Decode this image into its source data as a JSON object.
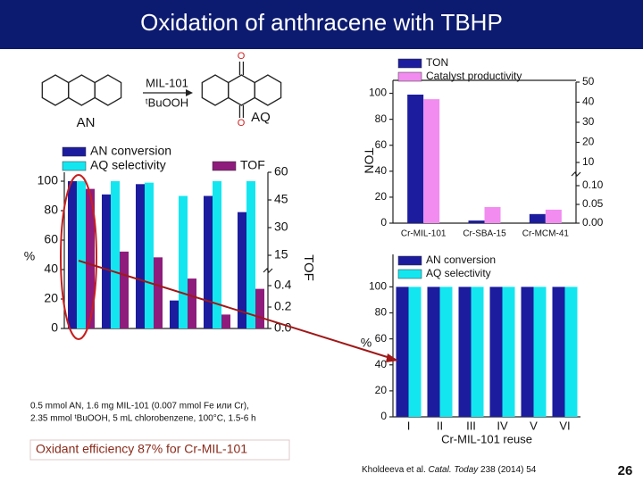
{
  "title": "Oxidation of anthracene with TBHP",
  "scheme": {
    "catalyst": "MIL-101",
    "oxidant": "ᵗBuOOH",
    "reactant": "AN",
    "product": "AQ",
    "atoms": [
      "O",
      "O"
    ]
  },
  "conditions": [
    "0.5 mmol AN, 1.6 mg MIL-101 (0.007 mmol Fe или Cr),",
    "2.35 mmol ᵗBuOOH, 5 mL chlorobenzene, 100°C, 1.5-6 h"
  ],
  "note": "Oxidant efficiency 87% for Cr-MIL-101",
  "reference": [
    "Kholdeeva et al. ",
    "Catal. Today",
    " 238 (2014) 54"
  ],
  "page_number": "26",
  "chart_data": [
    {
      "type": "bar",
      "categories": [
        null,
        null,
        null,
        null,
        null,
        null
      ],
      "series": [
        {
          "name": "AN conversion",
          "color": "#1c1c9e",
          "values": [
            100,
            91,
            98,
            19,
            90,
            79
          ]
        },
        {
          "name": "AQ selectivity",
          "color": "#14e6f0",
          "values": [
            100,
            100,
            99,
            90,
            100,
            100
          ]
        },
        {
          "name": "TOF",
          "color": "#8e1c7c",
          "values": [
            51,
            17,
            14,
            3.8,
            0.13,
            0.37
          ],
          "axis": "y2"
        }
      ],
      "ylabel": "%",
      "y2label": "TOF",
      "ylim": [
        0,
        100
      ],
      "yticks": [
        0,
        20,
        40,
        60,
        80,
        100
      ],
      "y2lim": [
        0,
        60
      ],
      "y2_break": [
        0.4,
        15
      ],
      "y2ticks": [
        {
          "value": 0,
          "label": "0.0"
        },
        0.2,
        0.4,
        15,
        30,
        45,
        60
      ]
    },
    {
      "type": "bar",
      "categories": [
        "Cr-MIL-101",
        "Cr-SBA-15",
        "Cr-MCM-41"
      ],
      "series": [
        {
          "name": "TON",
          "color": "#1c1c9e",
          "values": [
            99,
            2,
            7
          ]
        },
        {
          "name": "Catalyst productivity",
          "color": "#f28cf0",
          "values": [
            41.5,
            0.043,
            0.036
          ],
          "axis": "y2"
        }
      ],
      "ylabel": "TON",
      "ylim": [
        0,
        110
      ],
      "yticks": [
        0,
        20,
        40,
        60,
        80,
        100
      ],
      "y2lim": [
        0,
        50
      ],
      "y2_break": [
        0.1,
        10
      ],
      "y2ticks": [
        {
          "value": 0,
          "label": "0.00"
        },
        0.05,
        {
          "value": 0.1,
          "label": "0.10"
        },
        10,
        20,
        30,
        40,
        50
      ]
    },
    {
      "type": "bar",
      "categories": [
        "I",
        "II",
        "III",
        "IV",
        "V",
        "VI"
      ],
      "series": [
        {
          "name": "AN conversion",
          "color": "#1c1c9e",
          "values": [
            100,
            100,
            100,
            100,
            100,
            100
          ]
        },
        {
          "name": "AQ selectivity",
          "color": "#14e6f0",
          "values": [
            100,
            100,
            100,
            100,
            100,
            100
          ]
        }
      ],
      "ylabel": "%",
      "xlabel": "Cr-MIL-101 reuse",
      "ylim": [
        0,
        125
      ],
      "yticks": [
        0,
        20,
        40,
        60,
        80,
        100
      ]
    }
  ]
}
